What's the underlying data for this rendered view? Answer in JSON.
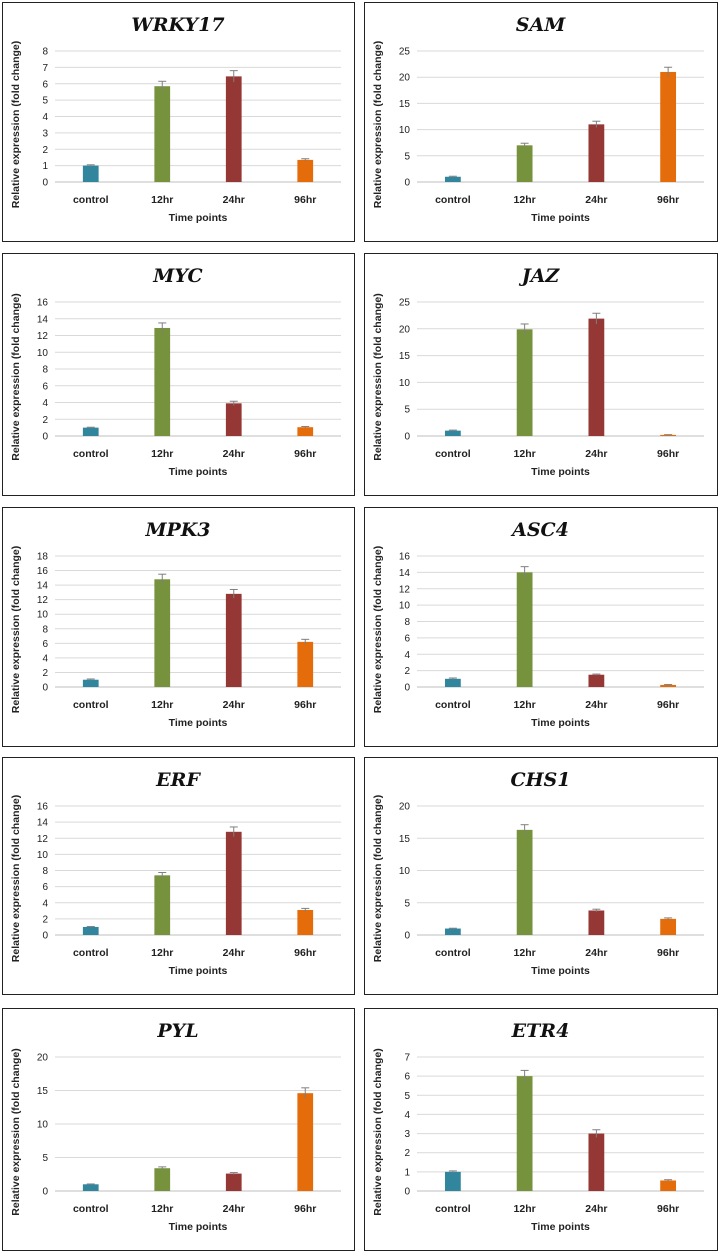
{
  "colors": {
    "control": "#31859c",
    "12hr": "#76923c",
    "24hr": "#953735",
    "96hr": "#e46c0a"
  },
  "chart_data": [
    {
      "type": "bar",
      "title": "WRKY17",
      "categories": [
        "control",
        "12hr",
        "24hr",
        "96hr"
      ],
      "values": [
        1.0,
        5.85,
        6.45,
        1.35
      ],
      "errors": [
        0.05,
        0.3,
        0.35,
        0.07
      ],
      "ylim": [
        0,
        8
      ],
      "ystep": 1,
      "xlabel": "Time points",
      "ylabel": "Relative expression (fold change)"
    },
    {
      "type": "bar",
      "title": "SAM",
      "categories": [
        "control",
        "12hr",
        "24hr",
        "96hr"
      ],
      "values": [
        1.0,
        7.0,
        11.0,
        21.0
      ],
      "errors": [
        0.1,
        0.4,
        0.6,
        0.9
      ],
      "ylim": [
        0,
        25
      ],
      "ystep": 5,
      "xlabel": "Time points",
      "ylabel": "Relative expression (fold change)"
    },
    {
      "type": "bar",
      "title": "MYC",
      "categories": [
        "control",
        "12hr",
        "24hr",
        "96hr"
      ],
      "values": [
        1.0,
        12.9,
        3.9,
        1.05
      ],
      "errors": [
        0.05,
        0.6,
        0.25,
        0.08
      ],
      "ylim": [
        0,
        16
      ],
      "ystep": 2,
      "xlabel": "Time points",
      "ylabel": "Relative expression (fold change)"
    },
    {
      "type": "bar",
      "title": "JAZ",
      "categories": [
        "control",
        "12hr",
        "24hr",
        "96hr"
      ],
      "values": [
        1.0,
        19.9,
        21.9,
        0.2
      ],
      "errors": [
        0.1,
        1.0,
        1.0,
        0.05
      ],
      "ylim": [
        0,
        25
      ],
      "ystep": 5,
      "xlabel": "Time points",
      "ylabel": "Relative expression (fold change)"
    },
    {
      "type": "bar",
      "title": "MPK3",
      "categories": [
        "control",
        "12hr",
        "24hr",
        "96hr"
      ],
      "values": [
        1.0,
        14.8,
        12.8,
        6.2
      ],
      "errors": [
        0.1,
        0.7,
        0.6,
        0.35
      ],
      "ylim": [
        0,
        18
      ],
      "ystep": 2,
      "xlabel": "Time points",
      "ylabel": "Relative expression (fold change)"
    },
    {
      "type": "bar",
      "title": "ASC4",
      "categories": [
        "control",
        "12hr",
        "24hr",
        "96hr"
      ],
      "values": [
        1.0,
        14.0,
        1.5,
        0.25
      ],
      "errors": [
        0.1,
        0.7,
        0.08,
        0.05
      ],
      "ylim": [
        0,
        16
      ],
      "ystep": 2,
      "xlabel": "Time points",
      "ylabel": "Relative expression (fold change)"
    },
    {
      "type": "bar",
      "title": "ERF",
      "categories": [
        "control",
        "12hr",
        "24hr",
        "96hr"
      ],
      "values": [
        1.0,
        7.4,
        12.8,
        3.1
      ],
      "errors": [
        0.05,
        0.35,
        0.6,
        0.2
      ],
      "ylim": [
        0,
        16
      ],
      "ystep": 2,
      "xlabel": "Time points",
      "ylabel": "Relative expression (fold change)"
    },
    {
      "type": "bar",
      "title": "CHS1",
      "categories": [
        "control",
        "12hr",
        "24hr",
        "96hr"
      ],
      "values": [
        1.0,
        16.3,
        3.8,
        2.5
      ],
      "errors": [
        0.05,
        0.8,
        0.2,
        0.15
      ],
      "ylim": [
        0,
        20
      ],
      "ystep": 5,
      "xlabel": "Time points",
      "ylabel": "Relative expression (fold change)"
    },
    {
      "type": "bar",
      "title": "PYL",
      "categories": [
        "control",
        "12hr",
        "24hr",
        "96hr"
      ],
      "values": [
        1.0,
        3.4,
        2.6,
        14.6
      ],
      "errors": [
        0.05,
        0.2,
        0.15,
        0.8
      ],
      "ylim": [
        0,
        20
      ],
      "ystep": 5,
      "xlabel": "Time points",
      "ylabel": "Relative expression (fold change)"
    },
    {
      "type": "bar",
      "title": "ETR4",
      "categories": [
        "control",
        "12hr",
        "24hr",
        "96hr"
      ],
      "values": [
        1.0,
        6.0,
        3.0,
        0.55
      ],
      "errors": [
        0.05,
        0.3,
        0.2,
        0.04
      ],
      "ylim": [
        0,
        7
      ],
      "ystep": 1,
      "xlabel": "Time points",
      "ylabel": "Relative expression (fold change)"
    }
  ]
}
